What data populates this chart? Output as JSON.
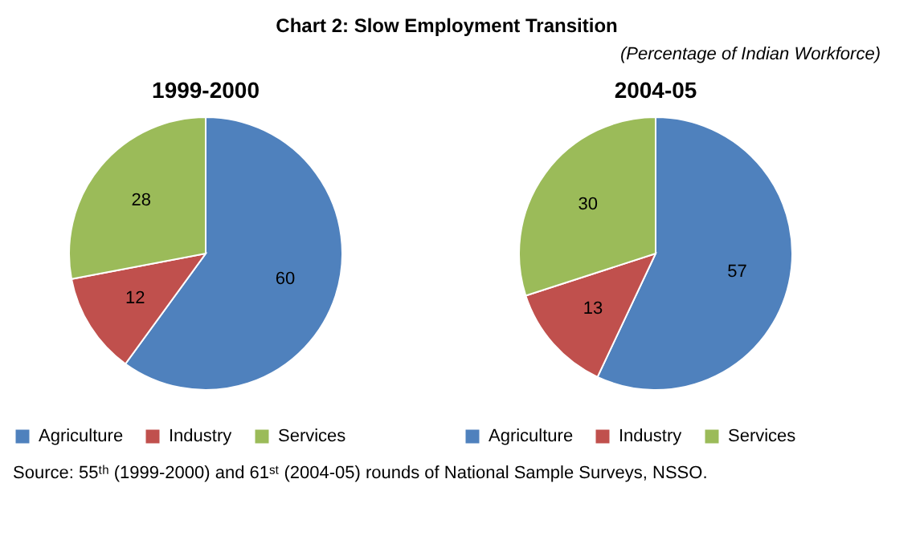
{
  "chart_data": [
    {
      "type": "other",
      "title": "Chart 2: Slow Employment Transition",
      "subtitle": "(Percentage of Indian Workforce)",
      "annotations": [
        "Source: 55ᵗʰ (1999-2000) and 61ˢᵗ (2004-05) rounds of National Sample Surveys, NSSO."
      ]
    },
    {
      "type": "pie",
      "title": "1999-2000",
      "categories": [
        "Agriculture",
        "Industry",
        "Services"
      ],
      "values": [
        60,
        12,
        28
      ],
      "colors": [
        "#4f81bd",
        "#c0504d",
        "#9bbb59"
      ],
      "data_labels": true,
      "legend": "bottom"
    },
    {
      "type": "pie",
      "title": "2004-05",
      "categories": [
        "Agriculture",
        "Industry",
        "Services"
      ],
      "values": [
        57,
        13,
        30
      ],
      "colors": [
        "#4f81bd",
        "#c0504d",
        "#9bbb59"
      ],
      "data_labels": true,
      "legend": "bottom"
    }
  ]
}
